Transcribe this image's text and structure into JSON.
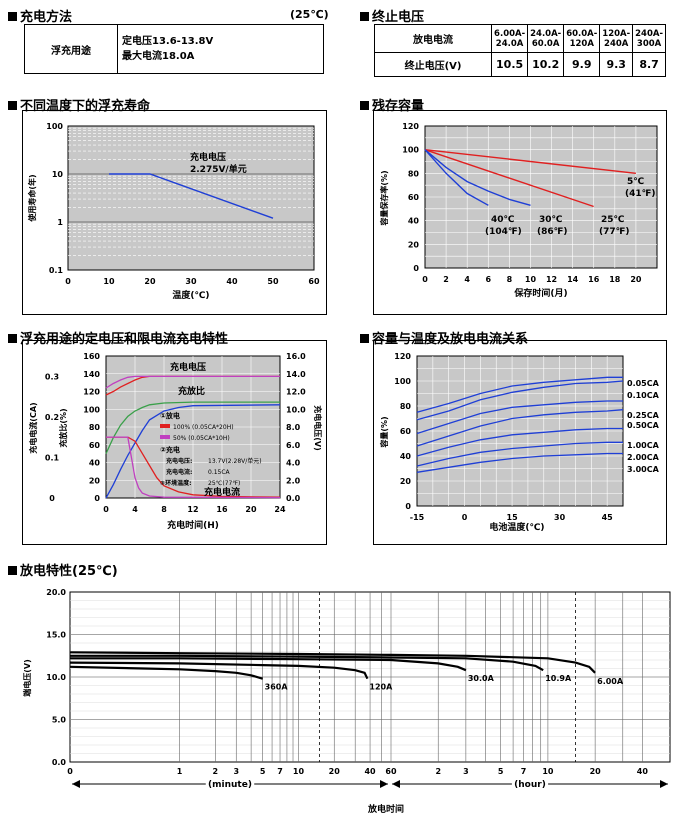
{
  "sections": {
    "charge_method": "充电方法",
    "charge_temp": "(25℃)",
    "end_voltage": "终止电压",
    "float_life": "不同温度下的浮充寿命",
    "residual": "残存容量",
    "float_char": "浮充用途的定电压和限电流充电特性",
    "cap_temp": "容量与温度及放电电流关系",
    "discharge": "放电特性(25℃)"
  },
  "charge_table": {
    "use": "浮充用途",
    "line1": "定电压13.6-13.8V",
    "line2": "最大电流18.0A"
  },
  "end_table": {
    "row1_label": "放电电流",
    "row2_label": "终止电压(V)",
    "headers": [
      [
        "6.00A-",
        "24.0A"
      ],
      [
        "24.0A-",
        "60.0A"
      ],
      [
        "60.0A-",
        "120A"
      ],
      [
        "120A-",
        "240A"
      ],
      [
        "240A-",
        "300A"
      ]
    ],
    "values": [
      "10.5",
      "10.2",
      "9.9",
      "9.3",
      "8.7"
    ]
  },
  "chart_data": [
    {
      "type": "line",
      "id": "float_life",
      "xlabel": "温度(℃)",
      "ylabel": "使用寿命(年)",
      "y_scale": "log",
      "xlim": [
        0,
        60
      ],
      "ylim": [
        0.1,
        100
      ],
      "xticks": [
        "0",
        "10",
        "20",
        "30",
        "40",
        "50",
        "60"
      ],
      "yticks": [
        "100",
        "10",
        "1",
        "0.1"
      ],
      "annotation": [
        "充电电压",
        "2.275V/单元"
      ],
      "series": [
        {
          "x": [
            10,
            20,
            50
          ],
          "y": [
            10,
            10,
            1.2
          ],
          "color": "#1f3fd6"
        }
      ]
    },
    {
      "type": "line",
      "id": "residual",
      "xlabel": "保存时间(月)",
      "ylabel": "容量保存率(%)",
      "xlim": [
        0,
        22
      ],
      "ylim": [
        0,
        120
      ],
      "xticks": [
        "0",
        "2",
        "4",
        "6",
        "8",
        "10",
        "12",
        "14",
        "16",
        "18",
        "20"
      ],
      "yticks": [
        "0",
        "20",
        "40",
        "60",
        "80",
        "100",
        "120"
      ],
      "labels": [
        {
          "l1": "5℃",
          "l2": "(41℉)"
        },
        {
          "l1": "25℃",
          "l2": "(77℉)"
        },
        {
          "l1": "30℃",
          "l2": "(86℉)"
        },
        {
          "l1": "40℃",
          "l2": "(104℉)"
        }
      ],
      "series": [
        {
          "x": [
            0,
            20
          ],
          "y": [
            100,
            80
          ],
          "color": "#e02020"
        },
        {
          "x": [
            0,
            16
          ],
          "y": [
            100,
            52
          ],
          "color": "#e02020"
        },
        {
          "x": [
            0,
            2,
            4,
            6,
            8,
            10
          ],
          "y": [
            100,
            85,
            73,
            65,
            58,
            53
          ],
          "color": "#1f3fd6"
        },
        {
          "x": [
            0,
            2,
            4,
            6
          ],
          "y": [
            100,
            80,
            63,
            53
          ],
          "color": "#1f3fd6"
        }
      ]
    },
    {
      "type": "line",
      "id": "float_char",
      "xlabel": "充电时间(H)",
      "xlim": [
        0,
        24
      ],
      "xticks": [
        "0",
        "4",
        "8",
        "12",
        "16",
        "20",
        "24"
      ],
      "y_left1": {
        "label": "充电电流(CA)",
        "ticks": [
          "0",
          "0.1",
          "0.2",
          "0.3"
        ]
      },
      "y_left2": {
        "label": "充放比(%)",
        "ticks": [
          "0",
          "20",
          "40",
          "60",
          "80",
          "100",
          "120",
          "140",
          "160"
        ]
      },
      "y_right": {
        "label": "充电电压(V)",
        "ticks": [
          "0.0",
          "2.0",
          "4.0",
          "6.0",
          "8.0",
          "10.0",
          "12.0",
          "14.0",
          "16.0"
        ]
      },
      "label_voltage": "充电电压",
      "label_ratio": "充放比",
      "label_current": "充电电流",
      "legend": {
        "l1": "①放电",
        "l2": "100% (0.05CA*20H)",
        "l3": "50% (0.05CA*10H)",
        "l4": "②充电",
        "l5": "充电电压:",
        "l5v": "13.7V(2.28V/单元)",
        "l6": "充电电流:",
        "l6v": "0.15CA",
        "l7": "③环境温度:",
        "l7v": "25℃(77℉)"
      },
      "series": [
        {
          "name": "v100",
          "x": [
            0,
            1,
            2,
            3,
            4,
            5,
            6,
            8,
            12,
            24
          ],
          "y": [
            11.6,
            12.0,
            12.5,
            12.9,
            13.3,
            13.6,
            13.7,
            13.7,
            13.7,
            13.7
          ],
          "axis": "v",
          "color": "#e02020"
        },
        {
          "name": "v50",
          "x": [
            0,
            1,
            2,
            3,
            4,
            5,
            24
          ],
          "y": [
            12.4,
            12.9,
            13.3,
            13.6,
            13.7,
            13.7,
            13.7
          ],
          "axis": "v",
          "color": "#c040c0"
        },
        {
          "name": "r100",
          "x": [
            0,
            1,
            2,
            3,
            4,
            5,
            6,
            8,
            10,
            12,
            24
          ],
          "y": [
            0,
            15,
            32,
            48,
            62,
            76,
            88,
            98,
            102,
            104,
            105
          ],
          "axis": "r",
          "color": "#1f3fd6"
        },
        {
          "name": "r50",
          "x": [
            0,
            1,
            2,
            3,
            4,
            5,
            6,
            8,
            12,
            24
          ],
          "y": [
            50,
            68,
            82,
            92,
            98,
            102,
            105,
            107,
            108,
            108
          ],
          "axis": "r",
          "color": "#3aa04a"
        },
        {
          "name": "i100",
          "x": [
            0,
            3,
            4,
            5,
            6,
            7,
            8,
            10,
            12,
            16,
            24
          ],
          "y": [
            0.15,
            0.15,
            0.14,
            0.11,
            0.08,
            0.05,
            0.03,
            0.015,
            0.008,
            0.004,
            0.002
          ],
          "axis": "i",
          "color": "#e02020"
        },
        {
          "name": "i50",
          "x": [
            0,
            3,
            3.5,
            4,
            4.5,
            5,
            6,
            8,
            24
          ],
          "y": [
            0.15,
            0.15,
            0.1,
            0.05,
            0.025,
            0.012,
            0.005,
            0.002,
            0.001
          ],
          "axis": "i",
          "color": "#c040c0"
        }
      ]
    },
    {
      "type": "line",
      "id": "cap_temp",
      "xlabel": "电池温度(℃)",
      "ylabel": "容量(%)",
      "xlim": [
        -15,
        50
      ],
      "ylim": [
        0,
        120
      ],
      "xticks": [
        "-15",
        "0",
        "15",
        "30",
        "45"
      ],
      "xtick_vals": [
        -15,
        0,
        15,
        30,
        45
      ],
      "yticks": [
        "0",
        "20",
        "40",
        "60",
        "80",
        "100",
        "120"
      ],
      "series": [
        {
          "name": "0.05CA",
          "x": [
            -15,
            -5,
            5,
            15,
            25,
            35,
            45,
            50
          ],
          "y": [
            75,
            82,
            90,
            96,
            99,
            101,
            103,
            103
          ]
        },
        {
          "name": "0.10CA",
          "x": [
            -15,
            -5,
            5,
            15,
            25,
            35,
            45,
            50
          ],
          "y": [
            69,
            76,
            85,
            91,
            95,
            98,
            99,
            100
          ]
        },
        {
          "name": "0.25CA",
          "x": [
            -15,
            -5,
            5,
            15,
            25,
            35,
            45,
            50
          ],
          "y": [
            58,
            66,
            74,
            79,
            81,
            83,
            84,
            84
          ]
        },
        {
          "name": "0.50CA",
          "x": [
            -15,
            -5,
            5,
            15,
            25,
            35,
            45,
            50
          ],
          "y": [
            48,
            56,
            64,
            70,
            73,
            75,
            76,
            77
          ]
        },
        {
          "name": "1.00CA",
          "x": [
            -15,
            -5,
            5,
            15,
            25,
            35,
            45,
            50
          ],
          "y": [
            40,
            47,
            53,
            57,
            59,
            61,
            62,
            62
          ]
        },
        {
          "name": "2.00CA",
          "x": [
            -15,
            -5,
            5,
            15,
            25,
            35,
            45,
            50
          ],
          "y": [
            32,
            38,
            43,
            46,
            48,
            50,
            51,
            51
          ]
        },
        {
          "name": "3.00CA",
          "x": [
            -15,
            -5,
            5,
            15,
            25,
            35,
            45,
            50
          ],
          "y": [
            27,
            31,
            35,
            38,
            40,
            41,
            42,
            42
          ]
        }
      ]
    },
    {
      "type": "line",
      "id": "discharge",
      "ylabel": "端电压(V)",
      "xlabel": "放电时间",
      "unit_minute": "(minute)",
      "unit_hour": "(hour)",
      "ylim": [
        0,
        20
      ],
      "yticks": [
        "0.0",
        "5.0",
        "10.0",
        "15.0",
        "20.0"
      ],
      "xticks_min": [
        "0",
        "1",
        "2",
        "3",
        "5",
        "7",
        "10",
        "20",
        "40",
        "60"
      ],
      "xticks_hour": [
        "2",
        "3",
        "5",
        "7",
        "10",
        "20",
        "40"
      ],
      "series": [
        {
          "name": "360A",
          "t_min": [
            0.1,
            0.5,
            1,
            2,
            3,
            4,
            5
          ],
          "y": [
            11.2,
            11.0,
            10.9,
            10.7,
            10.5,
            10.2,
            9.8
          ]
        },
        {
          "name": "120A",
          "t_min": [
            0.1,
            1,
            5,
            10,
            20,
            30,
            36,
            38
          ],
          "y": [
            11.7,
            11.6,
            11.4,
            11.3,
            11.1,
            10.8,
            10.5,
            9.8
          ]
        },
        {
          "name": "30.0A",
          "t_min": [
            0.1,
            1,
            10,
            60,
            120,
            160,
            180
          ],
          "y": [
            12.2,
            12.2,
            12.1,
            12.0,
            11.6,
            11.2,
            10.8
          ]
        },
        {
          "name": "10.9A",
          "t_min": [
            0.1,
            1,
            10,
            60,
            180,
            360,
            500,
            560
          ],
          "y": [
            12.5,
            12.5,
            12.4,
            12.3,
            12.2,
            11.8,
            11.3,
            10.8
          ]
        },
        {
          "name": "6.00A",
          "t_min": [
            0.1,
            1,
            10,
            60,
            180,
            600,
            900,
            1100,
            1200
          ],
          "y": [
            12.9,
            12.8,
            12.7,
            12.6,
            12.5,
            12.2,
            11.7,
            11.2,
            10.5
          ]
        }
      ]
    }
  ]
}
